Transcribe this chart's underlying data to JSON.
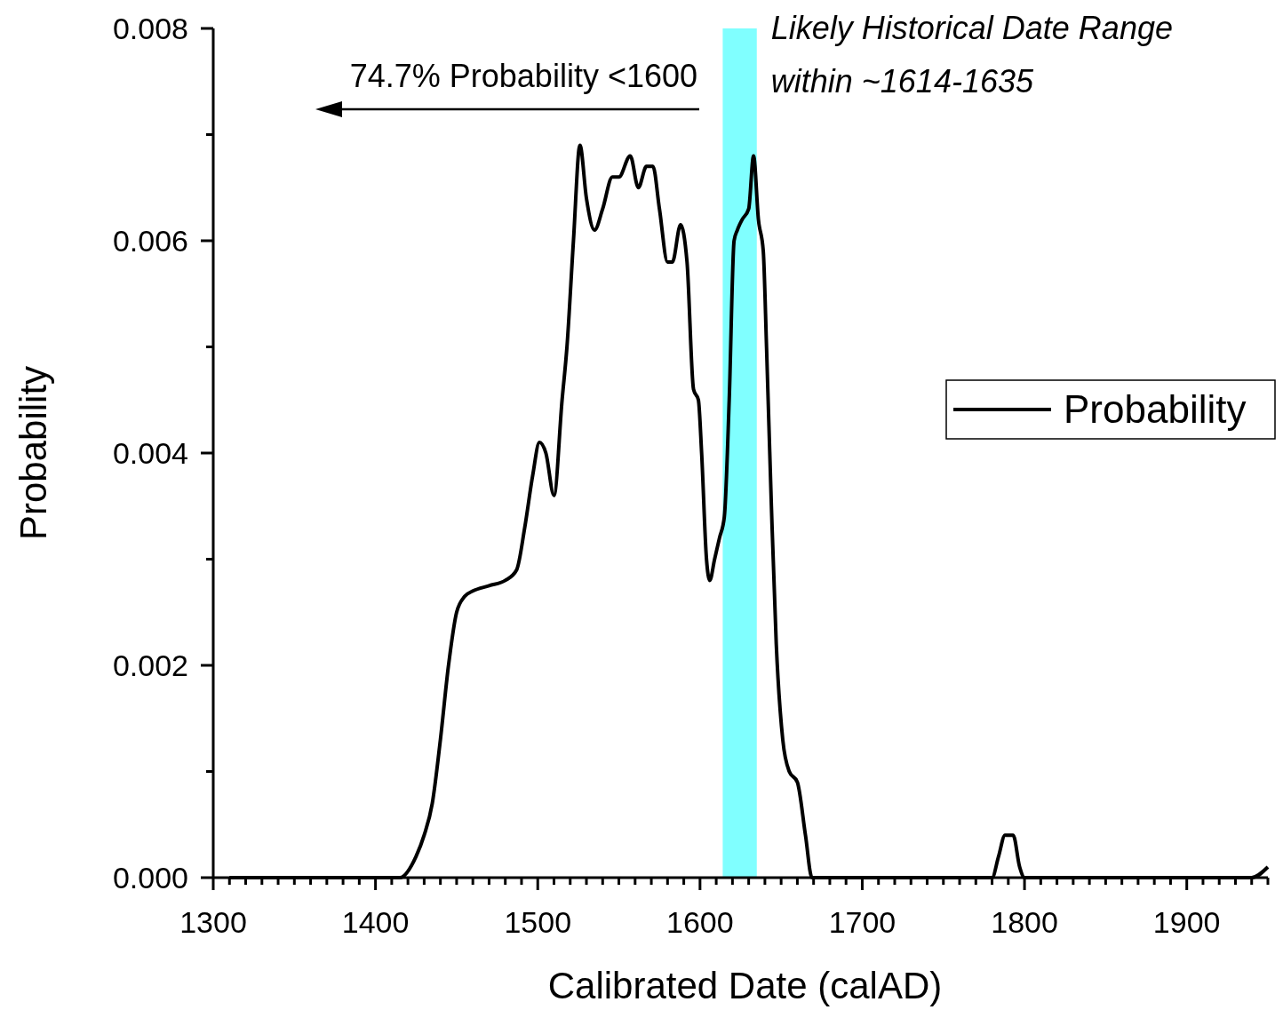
{
  "chart_data": {
    "type": "line",
    "xlabel": "Calibrated Date (calAD)",
    "ylabel": "Probability",
    "xlim": [
      1300,
      1950
    ],
    "ylim": [
      0,
      0.008
    ],
    "xticks": [
      1300,
      {
        "value": 1310,
        "label": null
      },
      {
        "value": 1320,
        "label": null
      },
      {
        "value": 1330,
        "label": null
      },
      {
        "value": 1340,
        "label": null
      },
      {
        "value": 1350,
        "label": null
      },
      {
        "value": 1360,
        "label": null
      },
      {
        "value": 1370,
        "label": null
      },
      {
        "value": 1380,
        "label": null
      },
      {
        "value": 1390,
        "label": null
      },
      1400,
      {
        "value": 1410,
        "label": null
      },
      {
        "value": 1420,
        "label": null
      },
      {
        "value": 1430,
        "label": null
      },
      {
        "value": 1440,
        "label": null
      },
      {
        "value": 1450,
        "label": null
      },
      {
        "value": 1460,
        "label": null
      },
      {
        "value": 1470,
        "label": null
      },
      {
        "value": 1480,
        "label": null
      },
      {
        "value": 1490,
        "label": null
      },
      1500,
      {
        "value": 1510,
        "label": null
      },
      {
        "value": 1520,
        "label": null
      },
      {
        "value": 1530,
        "label": null
      },
      {
        "value": 1540,
        "label": null
      },
      {
        "value": 1550,
        "label": null
      },
      {
        "value": 1560,
        "label": null
      },
      {
        "value": 1570,
        "label": null
      },
      {
        "value": 1580,
        "label": null
      },
      {
        "value": 1590,
        "label": null
      },
      1600,
      {
        "value": 1610,
        "label": null
      },
      {
        "value": 1620,
        "label": null
      },
      {
        "value": 1630,
        "label": null
      },
      {
        "value": 1640,
        "label": null
      },
      {
        "value": 1650,
        "label": null
      },
      {
        "value": 1660,
        "label": null
      },
      {
        "value": 1670,
        "label": null
      },
      {
        "value": 1680,
        "label": null
      },
      {
        "value": 1690,
        "label": null
      },
      1700,
      {
        "value": 1710,
        "label": null
      },
      {
        "value": 1720,
        "label": null
      },
      {
        "value": 1730,
        "label": null
      },
      {
        "value": 1740,
        "label": null
      },
      {
        "value": 1750,
        "label": null
      },
      {
        "value": 1760,
        "label": null
      },
      {
        "value": 1770,
        "label": null
      },
      {
        "value": 1780,
        "label": null
      },
      {
        "value": 1790,
        "label": null
      },
      1800,
      {
        "value": 1810,
        "label": null
      },
      {
        "value": 1820,
        "label": null
      },
      {
        "value": 1830,
        "label": null
      },
      {
        "value": 1840,
        "label": null
      },
      {
        "value": 1850,
        "label": null
      },
      {
        "value": 1860,
        "label": null
      },
      {
        "value": 1870,
        "label": null
      },
      {
        "value": 1880,
        "label": null
      },
      {
        "value": 1890,
        "label": null
      },
      1900,
      {
        "value": 1910,
        "label": null
      },
      {
        "value": 1920,
        "label": null
      },
      {
        "value": 1930,
        "label": null
      },
      {
        "value": 1940,
        "label": null
      },
      {
        "value": 1950,
        "label": null
      }
    ],
    "yticks": [
      {
        "value": 0,
        "label": "0.000"
      },
      {
        "value": 0.001,
        "label": null
      },
      {
        "value": 0.002,
        "label": "0.002"
      },
      {
        "value": 0.003,
        "label": null
      },
      {
        "value": 0.004,
        "label": "0.004"
      },
      {
        "value": 0.005,
        "label": null
      },
      {
        "value": 0.006,
        "label": "0.006"
      },
      {
        "value": 0.007,
        "label": null
      },
      {
        "value": 0.008,
        "label": "0.008"
      }
    ],
    "grid": false,
    "legend": "right",
    "line_style": "solid",
    "x": [
      1310,
      1388,
      1400,
      1415,
      1425,
      1430,
      1435,
      1440,
      1445,
      1450,
      1455,
      1460,
      1470,
      1480,
      1487,
      1492,
      1497,
      1501,
      1505,
      1510,
      1515,
      1518,
      1522,
      1526,
      1530,
      1535,
      1540,
      1546,
      1550,
      1557,
      1562,
      1567,
      1571,
      1575,
      1580,
      1583,
      1588,
      1592,
      1596,
      1599,
      1601,
      1604,
      1606,
      1609,
      1612,
      1615,
      1618,
      1621,
      1623,
      1626,
      1630,
      1633,
      1636,
      1639,
      1641,
      1644,
      1647,
      1651,
      1655,
      1660,
      1665,
      1669,
      1675,
      1700,
      1740,
      1760,
      1770,
      1780,
      1784,
      1788,
      1793,
      1797,
      1800,
      1900,
      1940,
      1950
    ],
    "series": [
      {
        "name": "Probability",
        "color": "#000000",
        "values": [
          0,
          0,
          0,
          0,
          0.0002,
          0.0004,
          0.0007,
          0.0013,
          0.002,
          0.0025,
          0.00265,
          0.0027,
          0.00275,
          0.0028,
          0.0029,
          0.0033,
          0.0038,
          0.0041,
          0.004,
          0.0036,
          0.0045,
          0.005,
          0.006,
          0.0069,
          0.0064,
          0.0061,
          0.0063,
          0.0066,
          0.0066,
          0.0068,
          0.0065,
          0.0067,
          0.0067,
          0.0063,
          0.0058,
          0.0058,
          0.00615,
          0.0058,
          0.0046,
          0.0045,
          0.004,
          0.003,
          0.0028,
          0.003,
          0.0032,
          0.0034,
          0.0045,
          0.006,
          0.0061,
          0.0062,
          0.0063,
          0.0068,
          0.0062,
          0.0059,
          0.005,
          0.0035,
          0.0022,
          0.0013,
          0.001,
          0.0009,
          0.0004,
          0,
          0,
          0,
          0,
          0,
          0,
          0,
          0.0002,
          0.0004,
          0.0004,
          0.0001,
          0,
          0,
          0,
          0.0001
        ]
      }
    ],
    "bands": [
      {
        "axis": "x",
        "from": 1614,
        "to": 1635,
        "label": "Likely Historical Date Range within ~1614-1635",
        "color": "#80ffff"
      }
    ],
    "annotations": [
      "74.7% Probability <1600"
    ]
  }
}
